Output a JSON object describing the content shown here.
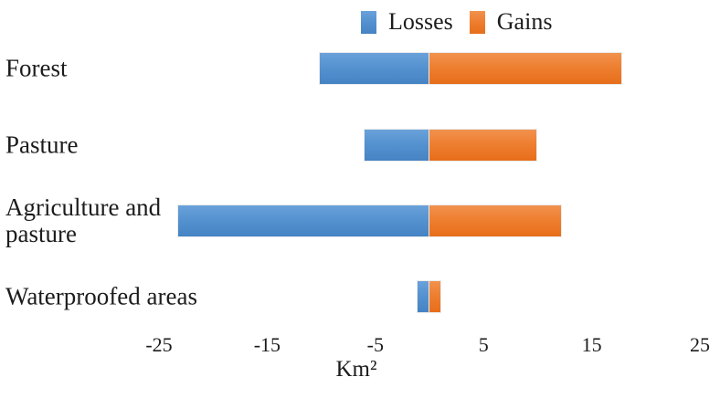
{
  "chart_data": {
    "type": "bar",
    "orientation": "horizontal-diverging",
    "title": "",
    "categories": [
      "Forest",
      "Pasture",
      "Agriculture and pasture",
      "Waterproofed areas"
    ],
    "series": [
      {
        "name": "Losses",
        "color": "#5592d0",
        "values": [
          -10.1,
          -6.0,
          -23.2,
          -1.1
        ]
      },
      {
        "name": "Gains",
        "color": "#ee7f31",
        "values": [
          17.7,
          9.9,
          12.2,
          1.0
        ]
      }
    ],
    "xlabel": "Km²",
    "ylabel": "",
    "x_ticks": [
      -25,
      -15,
      -5,
      5,
      15,
      25
    ],
    "xlim": [
      -27,
      27
    ],
    "grid": false,
    "axis_lines": false,
    "legend_position": "top-center",
    "background_color": "#ffffff",
    "text_color": "#1c1c1c"
  }
}
